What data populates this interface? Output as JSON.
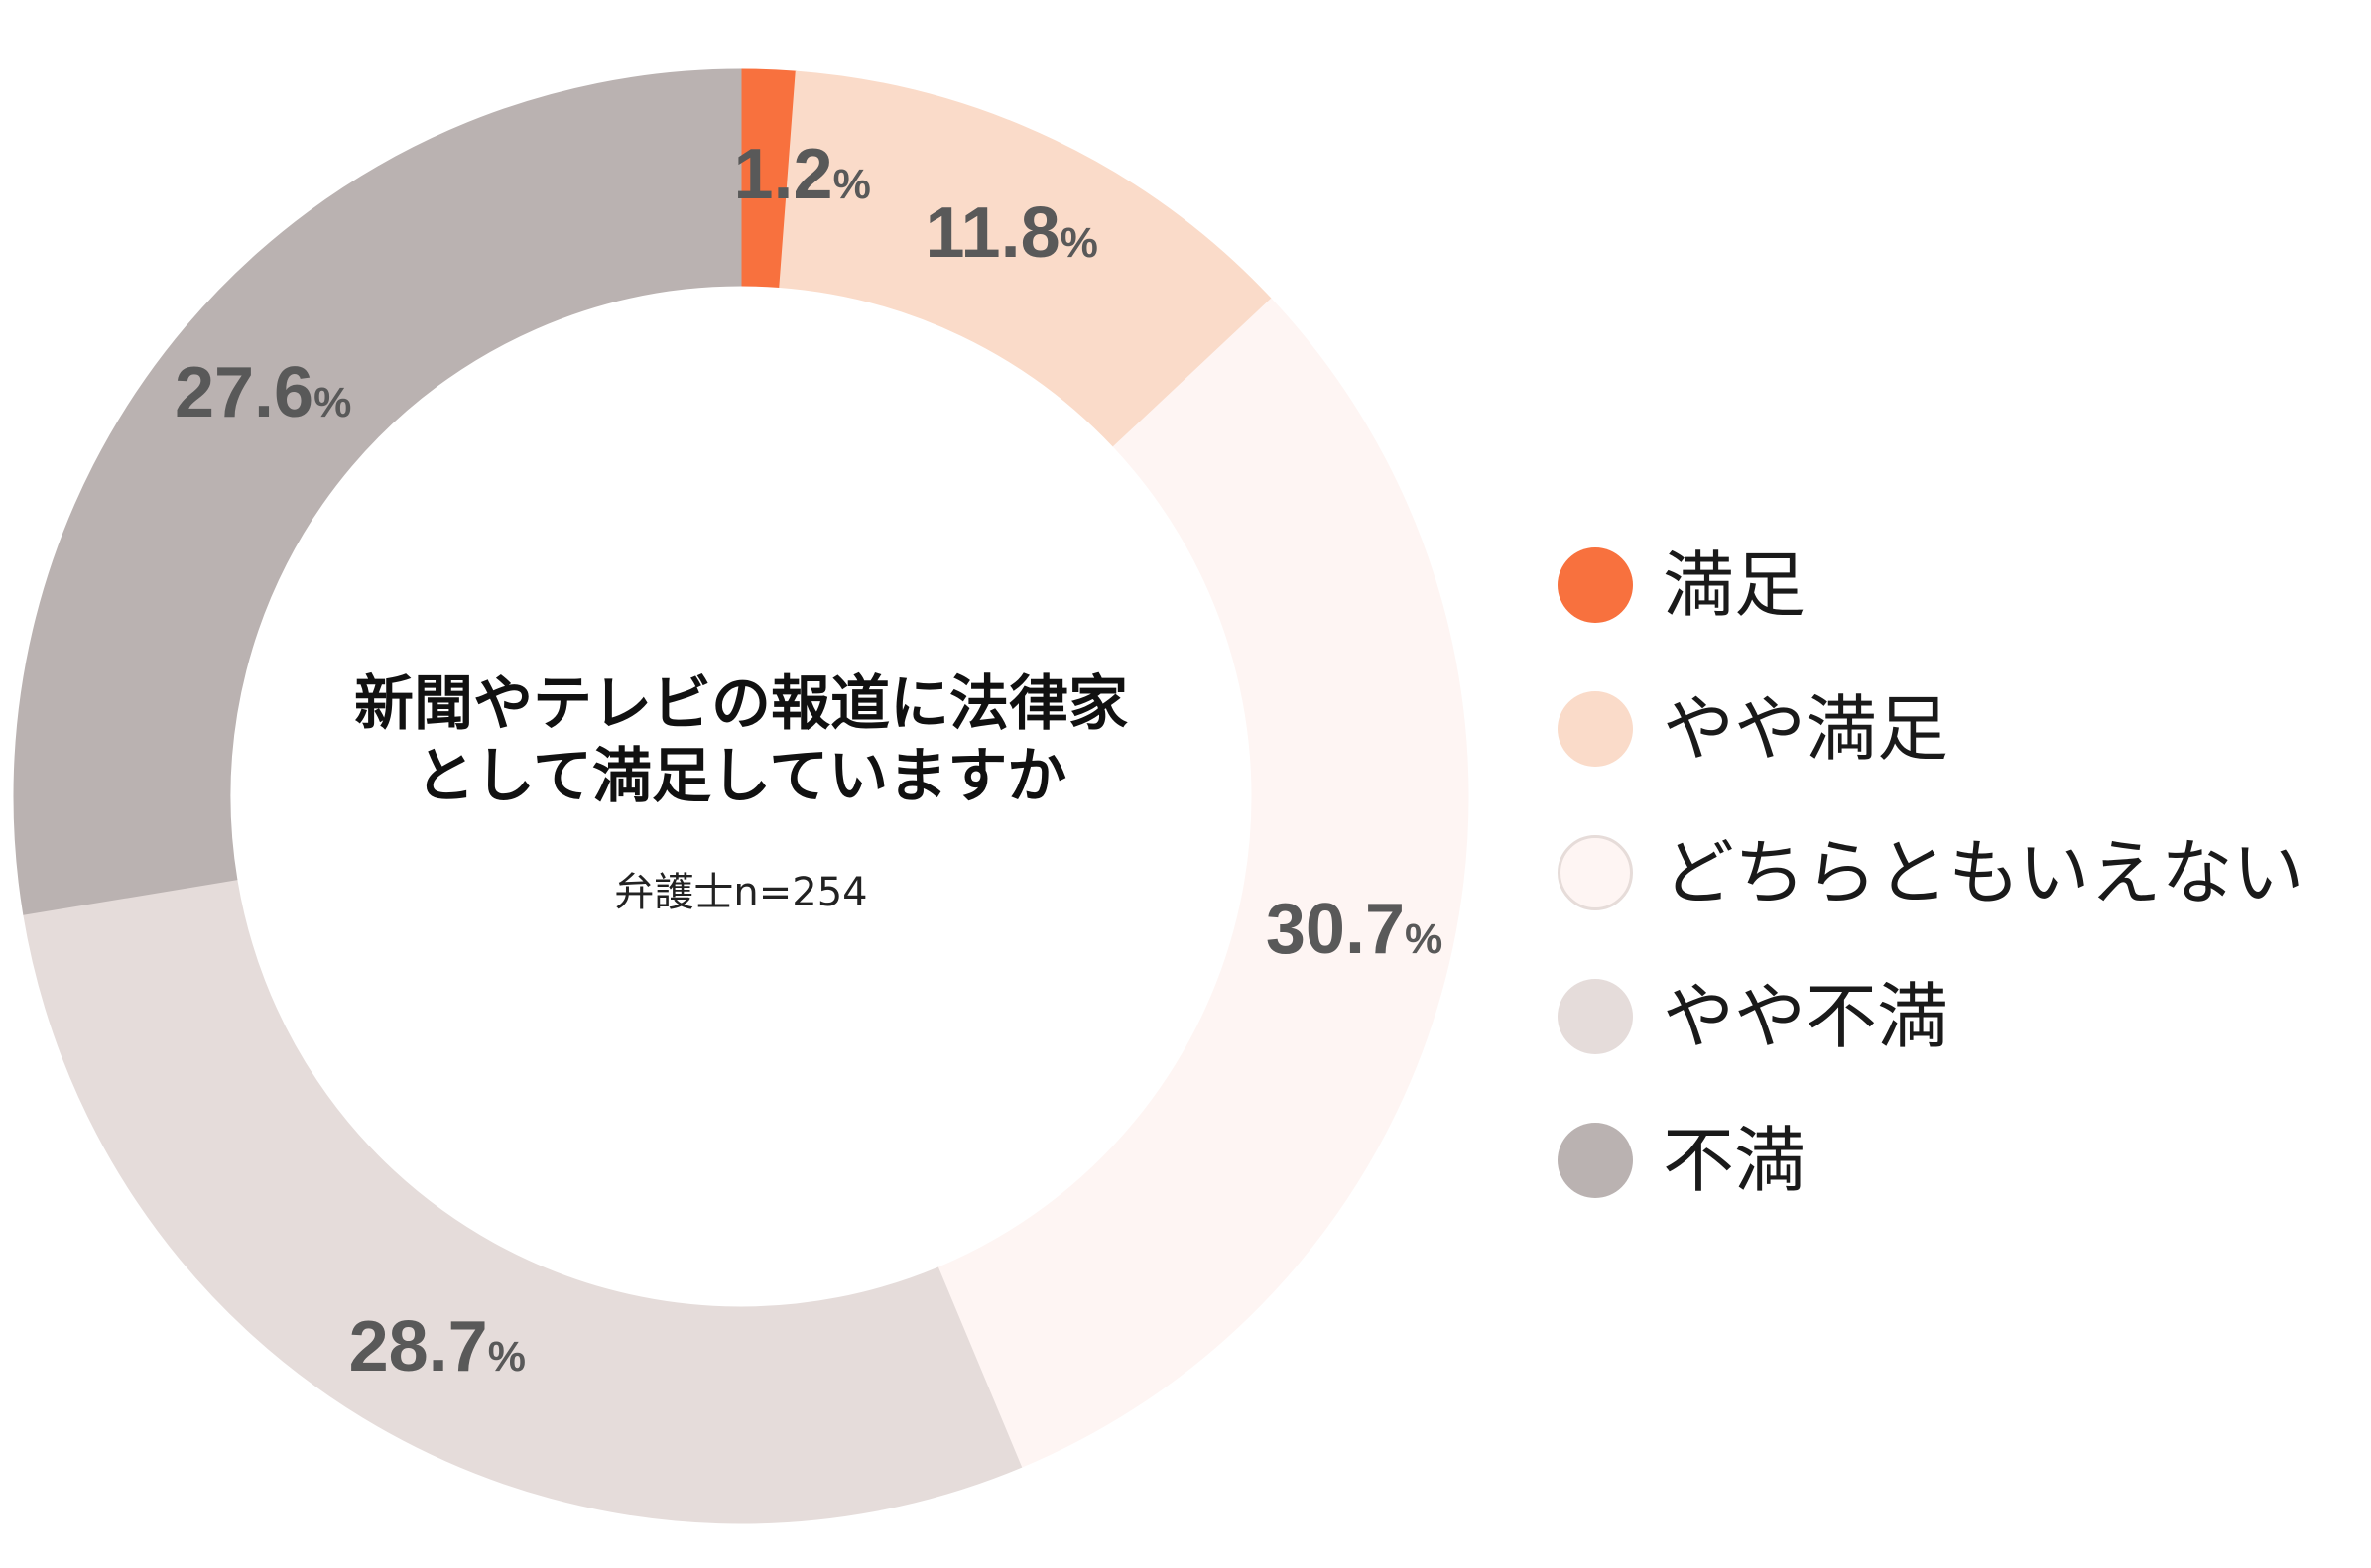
{
  "chart_data": {
    "type": "pie",
    "donut": true,
    "title_lines": [
      "新聞やテレビの報道に法律家",
      "として満足していますか"
    ],
    "subtitle": "弁護士n=254",
    "categories": [
      "満足",
      "やや満足",
      "どちらともいえない",
      "やや不満",
      "不満"
    ],
    "values": [
      1.2,
      11.8,
      30.7,
      28.7,
      27.6
    ],
    "unit": "%",
    "colors": [
      "#F8713E",
      "#FADBC9",
      "#FEF5F3",
      "#E5DCDA",
      "#BAB2B1"
    ],
    "start": "top",
    "direction": "clockwise",
    "legend_position": "right"
  }
}
